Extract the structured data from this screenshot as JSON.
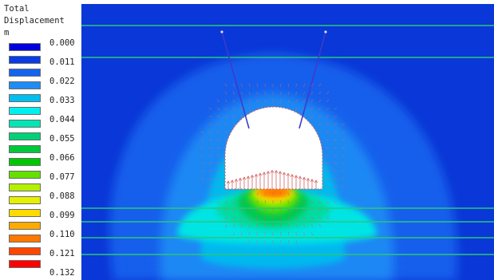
{
  "legend": {
    "title_lines": [
      "Total",
      "Displacement",
      "m"
    ],
    "ticks": [
      "0.000",
      "0.011",
      "0.022",
      "0.033",
      "0.044",
      "0.055",
      "0.066",
      "0.077",
      "0.088",
      "0.099",
      "0.110",
      "0.121",
      "0.132"
    ],
    "colors": [
      "#0000dc",
      "#0a3ce6",
      "#1464f0",
      "#1e8cf5",
      "#00bef0",
      "#00f0f0",
      "#00e6b4",
      "#00d278",
      "#00c83c",
      "#00c800",
      "#64e100",
      "#b4f000",
      "#e6f000",
      "#ffdc00",
      "#ffaa00",
      "#ff7800",
      "#ff4600",
      "#ff0000"
    ]
  },
  "plot": {
    "background_color": "#0a37d7",
    "layer_line_color": "#28c878",
    "anchor_color": "#3c3ccc",
    "vector_color": "#d26464",
    "excavation_fill": "#ffffff"
  }
}
